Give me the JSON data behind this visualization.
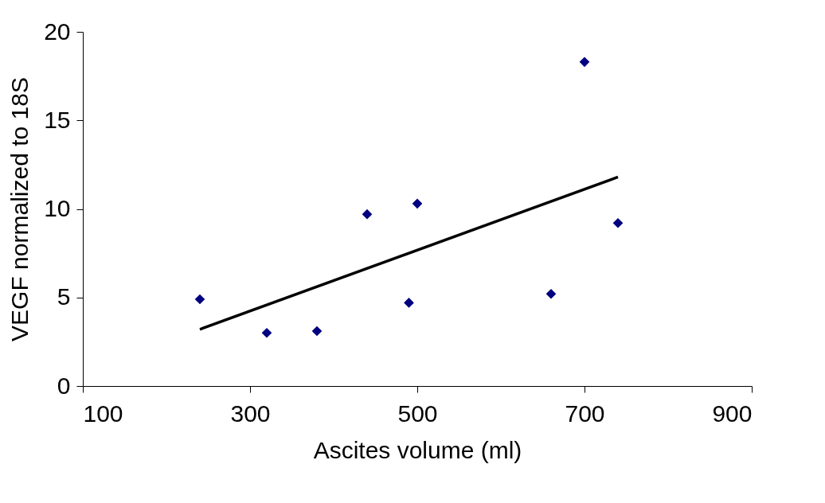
{
  "chart_data": {
    "type": "scatter",
    "xlabel": "Ascites volume (ml)",
    "ylabel": "VEGF normalized to 18S",
    "xlim": [
      100,
      900
    ],
    "xticks": [
      100,
      300,
      500,
      700,
      900
    ],
    "ylim": [
      0,
      20
    ],
    "yticks": [
      0,
      5,
      10,
      15,
      20
    ],
    "grid": false,
    "series": [
      {
        "color": "#000080",
        "marker": "diamond",
        "x": [
          240,
          320,
          380,
          440,
          490,
          500,
          660,
          700,
          740
        ],
        "values": [
          4.9,
          3.0,
          3.1,
          9.7,
          4.7,
          10.3,
          5.2,
          18.3,
          9.2
        ]
      },
      {
        "type": "line",
        "color": "#000000",
        "x": [
          240,
          740
        ],
        "values": [
          3.2,
          11.8
        ],
        "line_style": "solid",
        "marker": "none"
      }
    ]
  }
}
